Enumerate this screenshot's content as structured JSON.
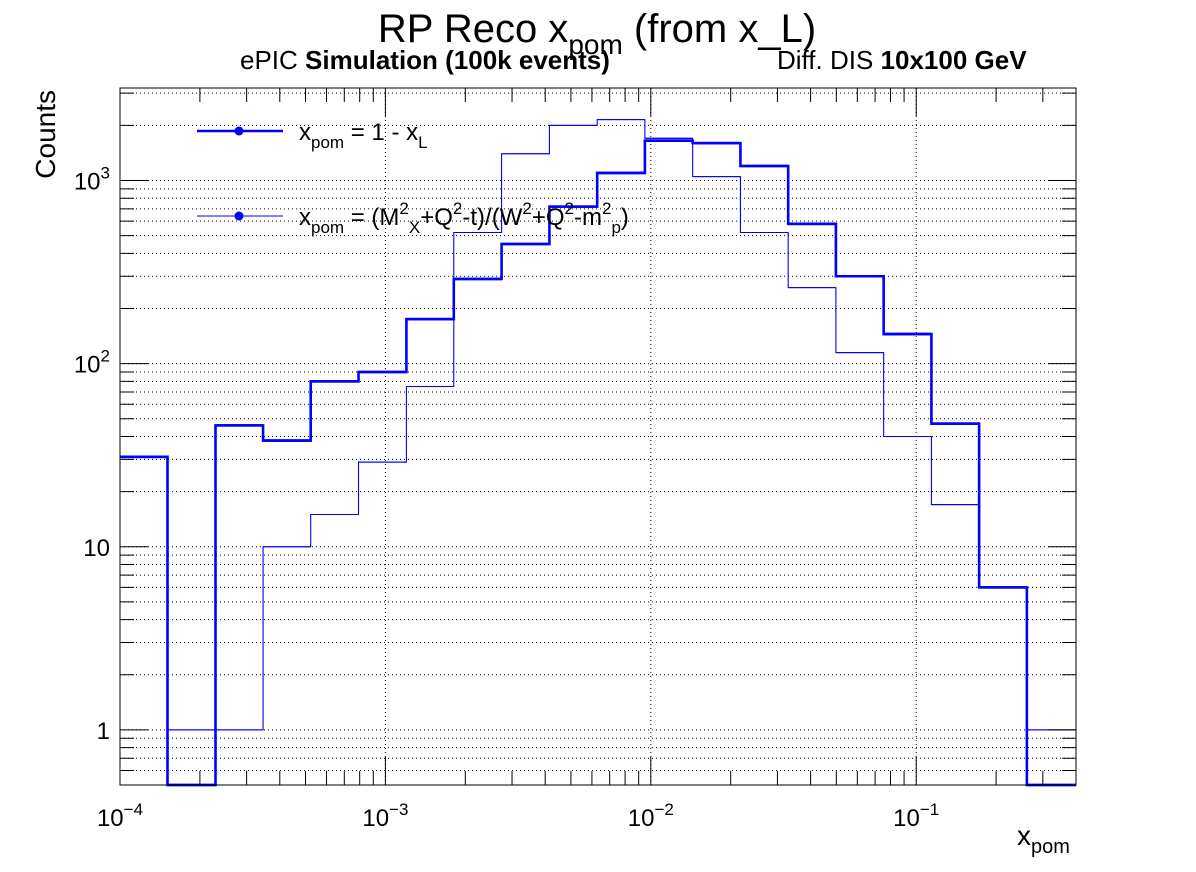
{
  "chart_data": {
    "type": "histogram",
    "title": {
      "main": "RP Reco x",
      "sub": "pom",
      "tail": " (from x_L)"
    },
    "subtitle_left": {
      "plain": "ePIC ",
      "bold": "Simulation (100k events)"
    },
    "subtitle_right": {
      "plain": "Diff. DIS ",
      "bold": "10x100 GeV"
    },
    "xlabel": {
      "main": "x",
      "sub": "pom"
    },
    "ylabel": "Counts",
    "x_scale": "log",
    "y_scale": "log",
    "xlim": [
      0.0001,
      0.4
    ],
    "ylim": [
      0.5,
      3200
    ],
    "grid": true,
    "legend_position": "top-left",
    "x_tick_labels": [
      {
        "value": 0.0001,
        "base": "10",
        "exp": "−4"
      },
      {
        "value": 0.001,
        "base": "10",
        "exp": "−3"
      },
      {
        "value": 0.01,
        "base": "10",
        "exp": "−2"
      },
      {
        "value": 0.1,
        "base": "10",
        "exp": "−1"
      }
    ],
    "y_tick_labels": [
      {
        "value": 1,
        "base": "1",
        "exp": ""
      },
      {
        "value": 10,
        "base": "10",
        "exp": ""
      },
      {
        "value": 100,
        "base": "10",
        "exp": "2"
      },
      {
        "value": 1000,
        "base": "10",
        "exp": "3"
      }
    ],
    "bin_edges": [
      0.0001,
      0.000151,
      0.000229,
      0.000346,
      0.000523,
      0.000792,
      0.0012,
      0.00181,
      0.00274,
      0.00415,
      0.00628,
      0.0095,
      0.01438,
      0.02176,
      0.03293,
      0.04982,
      0.07539,
      0.1141,
      0.1726,
      0.2612,
      0.4
    ],
    "series": [
      {
        "legend_parts": [
          {
            "t": "x"
          },
          {
            "t": "pom",
            "sub": true
          },
          {
            "t": " = 1 - x"
          },
          {
            "t": "L",
            "sub": true
          }
        ],
        "color": "#0000ff",
        "line_weight": "thick",
        "values": [
          31,
          0,
          46,
          38,
          80,
          90,
          175,
          290,
          450,
          720,
          1100,
          1650,
          1600,
          1200,
          580,
          300,
          145,
          47,
          6,
          0
        ]
      },
      {
        "legend_parts": [
          {
            "t": "x"
          },
          {
            "t": "pom",
            "sub": true
          },
          {
            "t": " = (M"
          },
          {
            "t": "2",
            "sup": true
          },
          {
            "t": "X",
            "sub": true
          },
          {
            "t": "+Q"
          },
          {
            "t": "2",
            "sup": true
          },
          {
            "t": "-t)/(W"
          },
          {
            "t": "2",
            "sup": true
          },
          {
            "t": "+Q"
          },
          {
            "t": "2",
            "sup": true
          },
          {
            "t": "-m"
          },
          {
            "t": "2",
            "sup": true
          },
          {
            "t": "p",
            "sub": true
          },
          {
            "t": ")"
          }
        ],
        "color": "#0000ff",
        "line_weight": "thin",
        "values": [
          0,
          1,
          1,
          10,
          15,
          29,
          75,
          520,
          1400,
          2000,
          2150,
          1700,
          1050,
          520,
          260,
          115,
          40,
          17,
          6,
          1
        ]
      }
    ]
  }
}
